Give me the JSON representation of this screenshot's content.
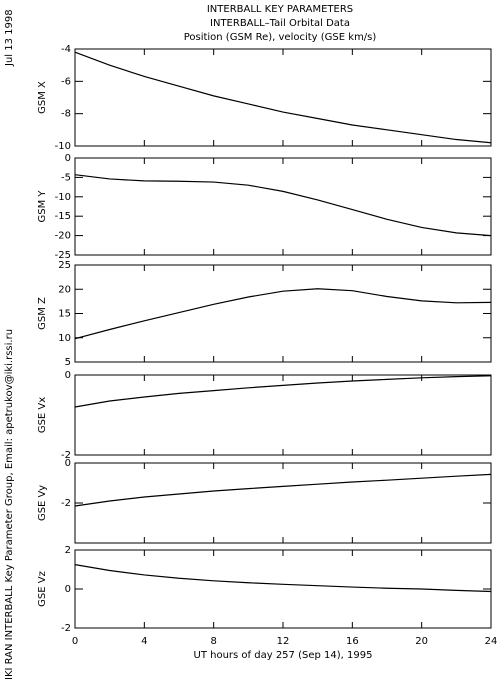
{
  "titles": [
    "INTERBALL KEY PARAMETERS",
    "INTERBALL–Tail Orbital Data",
    "Position (GSM Re), velocity (GSE km/s)"
  ],
  "side": {
    "date": "Jul 13 1998",
    "credit": "IKI RAN INTERBALL Key Parameter Group, Email: apetrukov@iki.rssi.ru"
  },
  "chart_data": [
    {
      "type": "line",
      "ylabel": "GSM X",
      "color": "#000000",
      "x": [
        0,
        2,
        4,
        6,
        8,
        10,
        12,
        14,
        16,
        18,
        20,
        22,
        24
      ],
      "values": [
        -4.2,
        -5.0,
        -5.7,
        -6.3,
        -6.9,
        -7.4,
        -7.9,
        -8.3,
        -8.7,
        -9.0,
        -9.3,
        -9.6,
        -9.8
      ],
      "xlim": [
        0,
        24
      ],
      "xticks": [
        0,
        4,
        8,
        12,
        16,
        20,
        24
      ],
      "ylim": [
        -10,
        -4
      ],
      "yticks": [
        -10,
        -8,
        -6,
        -4
      ]
    },
    {
      "type": "line",
      "ylabel": "GSM Y",
      "color": "#000000",
      "x": [
        0,
        2,
        4,
        6,
        8,
        10,
        12,
        14,
        16,
        18,
        20,
        22,
        24
      ],
      "values": [
        -4.3,
        -5.4,
        -5.9,
        -6.0,
        -6.2,
        -7.0,
        -8.6,
        -10.8,
        -13.3,
        -15.8,
        -17.9,
        -19.3,
        -20.0
      ],
      "xlim": [
        0,
        24
      ],
      "xticks": [
        0,
        4,
        8,
        12,
        16,
        20,
        24
      ],
      "ylim": [
        -25,
        0
      ],
      "yticks": [
        -25,
        -20,
        -15,
        -10,
        -5,
        0
      ]
    },
    {
      "type": "line",
      "ylabel": "GSM Z",
      "color": "#000000",
      "x": [
        0,
        2,
        4,
        6,
        8,
        10,
        12,
        14,
        16,
        18,
        20,
        22,
        24
      ],
      "values": [
        9.8,
        11.7,
        13.5,
        15.2,
        16.9,
        18.4,
        19.6,
        20.1,
        19.7,
        18.5,
        17.6,
        17.2,
        17.3
      ],
      "xlim": [
        0,
        24
      ],
      "xticks": [
        0,
        4,
        8,
        12,
        16,
        20,
        24
      ],
      "ylim": [
        5,
        25
      ],
      "yticks": [
        5,
        10,
        15,
        20,
        25
      ]
    },
    {
      "type": "line",
      "ylabel": "GSE Vx",
      "color": "#000000",
      "x": [
        0,
        2,
        4,
        6,
        8,
        10,
        12,
        14,
        16,
        18,
        20,
        22,
        24
      ],
      "values": [
        -0.8,
        -0.65,
        -0.55,
        -0.46,
        -0.39,
        -0.32,
        -0.26,
        -0.2,
        -0.15,
        -0.11,
        -0.07,
        -0.04,
        -0.02
      ],
      "xlim": [
        0,
        24
      ],
      "xticks": [
        0,
        4,
        8,
        12,
        16,
        20,
        24
      ],
      "ylim": [
        -2,
        0
      ],
      "yticks": [
        -2,
        0
      ]
    },
    {
      "type": "line",
      "ylabel": "GSE Vy",
      "color": "#000000",
      "x": [
        0,
        2,
        4,
        6,
        8,
        10,
        12,
        14,
        16,
        18,
        20,
        22,
        24
      ],
      "values": [
        -2.15,
        -1.9,
        -1.7,
        -1.55,
        -1.4,
        -1.28,
        -1.17,
        -1.06,
        -0.95,
        -0.86,
        -0.76,
        -0.66,
        -0.57
      ],
      "xlim": [
        0,
        24
      ],
      "xticks": [
        0,
        4,
        8,
        12,
        16,
        20,
        24
      ],
      "ylim": [
        -4,
        0
      ],
      "yticks": [
        -2,
        0
      ]
    },
    {
      "type": "line",
      "ylabel": "GSE Vz",
      "color": "#000000",
      "xlabel": "UT hours of day 257 (Sep 14), 1995",
      "x": [
        0,
        2,
        4,
        6,
        8,
        10,
        12,
        14,
        16,
        18,
        20,
        22,
        24
      ],
      "values": [
        1.25,
        0.95,
        0.72,
        0.55,
        0.42,
        0.32,
        0.24,
        0.17,
        0.1,
        0.04,
        0,
        -0.07,
        -0.13
      ],
      "xlim": [
        0,
        24
      ],
      "xticks": [
        0,
        4,
        8,
        12,
        16,
        20,
        24
      ],
      "ylim": [
        -2,
        2
      ],
      "yticks": [
        -2,
        0,
        2
      ]
    }
  ]
}
